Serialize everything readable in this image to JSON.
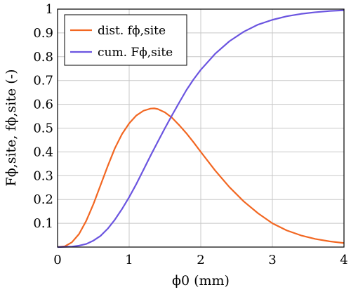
{
  "chart_data": {
    "type": "line",
    "title": "",
    "xlabel": "ϕ0 (mm)",
    "ylabel": "Fϕ,site, fϕ,site (-)",
    "xlim": [
      0,
      4
    ],
    "ylim": [
      0,
      1
    ],
    "grid": true,
    "legend_position": "top-left",
    "x_ticks": [
      "0",
      "1",
      "2",
      "3",
      "4"
    ],
    "y_ticks": [
      "0.1",
      "0.2",
      "0.3",
      "0.4",
      "0.5",
      "0.6",
      "0.7",
      "0.8",
      "0.9",
      "1"
    ],
    "series": [
      {
        "name": "dist. fϕ,site",
        "color": "#f26722",
        "x": [
          0,
          0.1,
          0.2,
          0.3,
          0.4,
          0.5,
          0.6,
          0.7,
          0.8,
          0.9,
          1.0,
          1.1,
          1.2,
          1.3,
          1.35,
          1.4,
          1.5,
          1.6,
          1.7,
          1.8,
          1.9,
          2.0,
          2.2,
          2.4,
          2.6,
          2.8,
          3.0,
          3.2,
          3.4,
          3.6,
          3.8,
          4.0
        ],
        "y": [
          0,
          0.003,
          0.02,
          0.055,
          0.11,
          0.18,
          0.26,
          0.34,
          0.415,
          0.475,
          0.52,
          0.553,
          0.573,
          0.582,
          0.583,
          0.58,
          0.566,
          0.543,
          0.512,
          0.478,
          0.44,
          0.4,
          0.322,
          0.252,
          0.192,
          0.142,
          0.1,
          0.07,
          0.049,
          0.034,
          0.024,
          0.017
        ]
      },
      {
        "name": "cum. Fϕ,site",
        "color": "#6b55e0",
        "x": [
          0,
          0.2,
          0.3,
          0.4,
          0.5,
          0.6,
          0.7,
          0.8,
          0.9,
          1.0,
          1.1,
          1.2,
          1.3,
          1.4,
          1.5,
          1.6,
          1.7,
          1.8,
          1.9,
          2.0,
          2.2,
          2.4,
          2.6,
          2.8,
          3.0,
          3.2,
          3.4,
          3.6,
          3.8,
          4.0
        ],
        "y": [
          0,
          0.002,
          0.006,
          0.013,
          0.027,
          0.047,
          0.077,
          0.115,
          0.16,
          0.21,
          0.265,
          0.325,
          0.385,
          0.443,
          0.5,
          0.555,
          0.608,
          0.66,
          0.705,
          0.745,
          0.812,
          0.865,
          0.905,
          0.935,
          0.955,
          0.97,
          0.98,
          0.987,
          0.992,
          0.995
        ]
      }
    ]
  }
}
